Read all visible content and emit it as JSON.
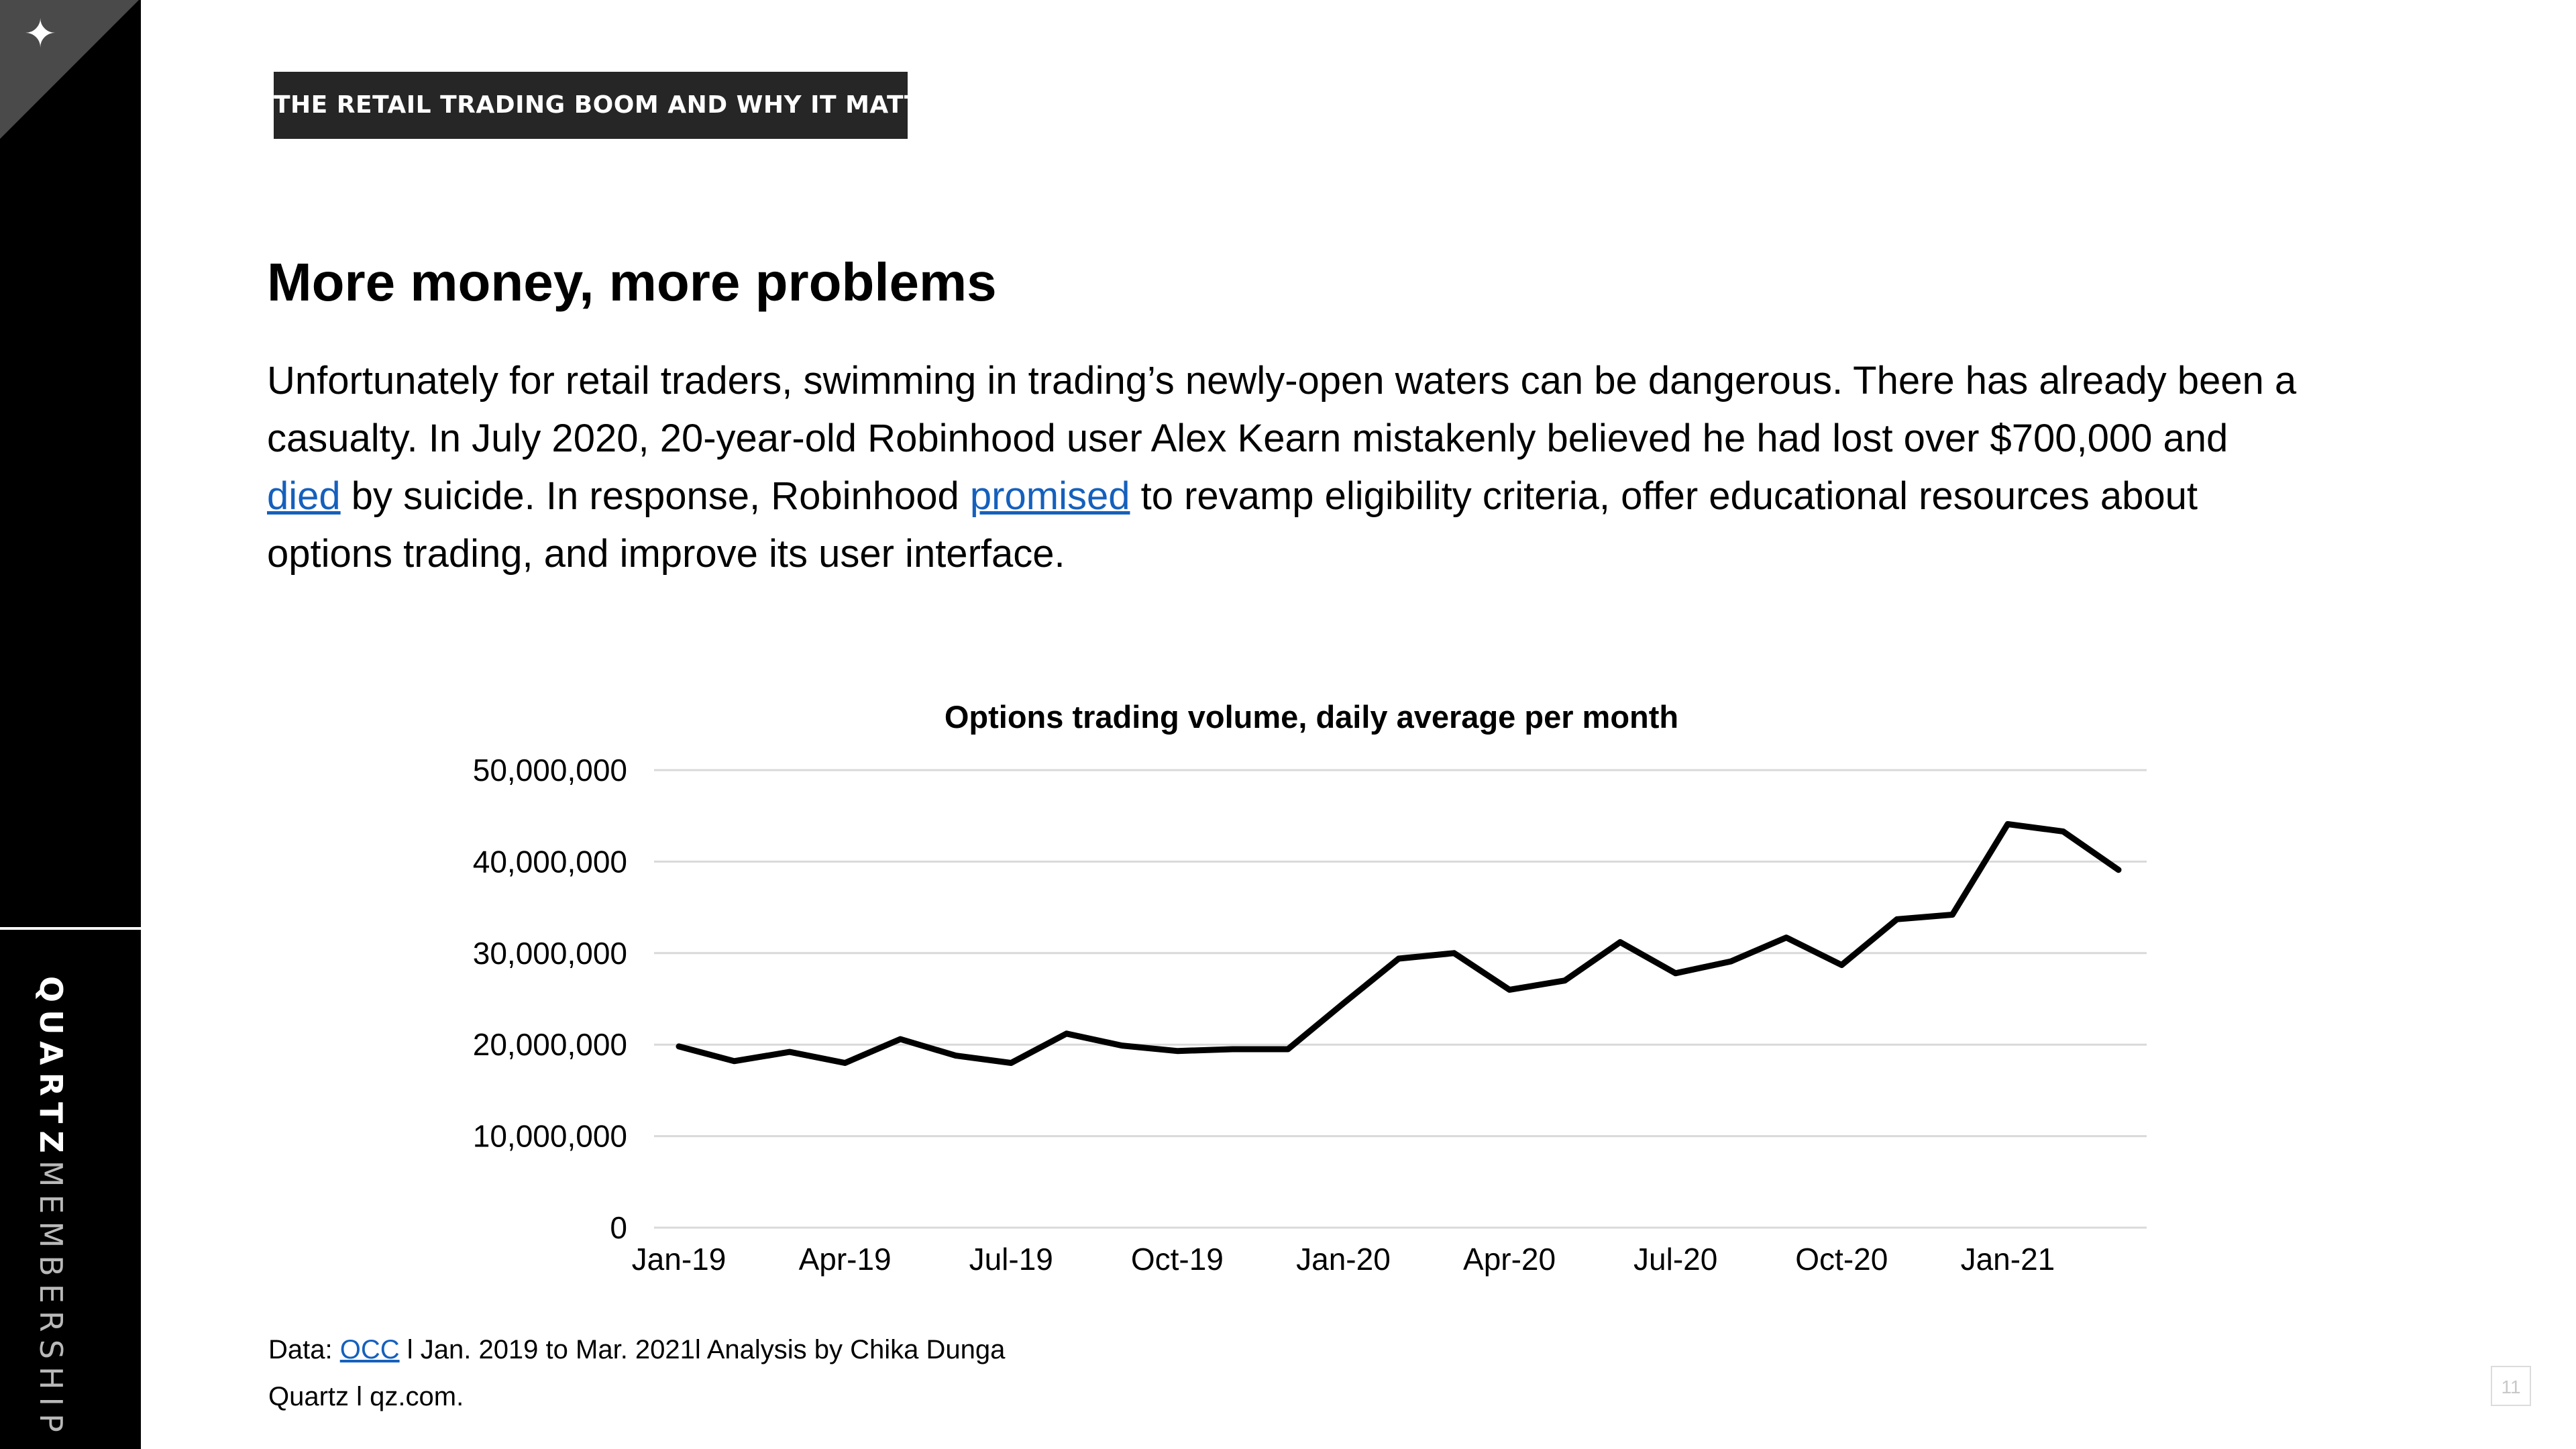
{
  "sidebar": {
    "logo_icon": "four-point-star-icon",
    "brand_bold": "QUARTZ",
    "brand_light": "MEMBERSHIP"
  },
  "section_tag": "THE RETAIL TRADING BOOM AND WHY IT MATTERS",
  "headline": "More money, more problems",
  "body": {
    "part1": "Unfortunately for retail traders, swimming in trading’s newly-open waters can be dangerous. There has already been a casualty. In July 2020, 20-year-old Robinhood user Alex Kearn mistakenly believed he had lost over $700,000 and ",
    "link1": "died",
    "part2": " by suicide. In response, Robinhood ",
    "link2": "promised",
    "part3": " to revamp eligibility criteria, offer educational resources about options trading, and improve its user interface."
  },
  "chart_data": {
    "type": "line",
    "title": "Options trading volume, daily average per month",
    "xlabel": "",
    "ylabel": "",
    "ylim": [
      0,
      50000000
    ],
    "y_ticks": [
      0,
      10000000,
      20000000,
      30000000,
      40000000,
      50000000
    ],
    "y_tick_labels": [
      "0",
      "10,000,000",
      "20,000,000",
      "30,000,000",
      "40,000,000",
      "50,000,000"
    ],
    "x_tick_labels": [
      "Jan-19",
      "Apr-19",
      "Jul-19",
      "Oct-19",
      "Jan-20",
      "Apr-20",
      "Jul-20",
      "Oct-20",
      "Jan-21"
    ],
    "x_tick_every": 3,
    "grid": true,
    "legend": "none",
    "line_color": "#000000",
    "grid_color": "#d9d9d9",
    "x": [
      "Jan-19",
      "Feb-19",
      "Mar-19",
      "Apr-19",
      "May-19",
      "Jun-19",
      "Jul-19",
      "Aug-19",
      "Sep-19",
      "Oct-19",
      "Nov-19",
      "Dec-19",
      "Jan-20",
      "Feb-20",
      "Mar-20",
      "Apr-20",
      "May-20",
      "Jun-20",
      "Jul-20",
      "Aug-20",
      "Sep-20",
      "Oct-20",
      "Nov-20",
      "Dec-20",
      "Jan-21",
      "Feb-21",
      "Mar-21"
    ],
    "values": [
      19800000,
      18200000,
      19200000,
      18000000,
      20600000,
      18800000,
      18000000,
      21200000,
      19900000,
      19300000,
      19500000,
      19500000,
      24500000,
      29400000,
      30000000,
      26000000,
      27000000,
      31200000,
      27800000,
      29100000,
      31700000,
      28700000,
      33700000,
      34200000,
      44100000,
      43300000,
      39100000
    ]
  },
  "source": {
    "prefix": "Data: ",
    "link": "OCC",
    "suffix": " l Jan. 2019  to Mar. 2021l Analysis by Chika Dunga"
  },
  "credit": "Quartz l qz.com.",
  "page_number": "11"
}
